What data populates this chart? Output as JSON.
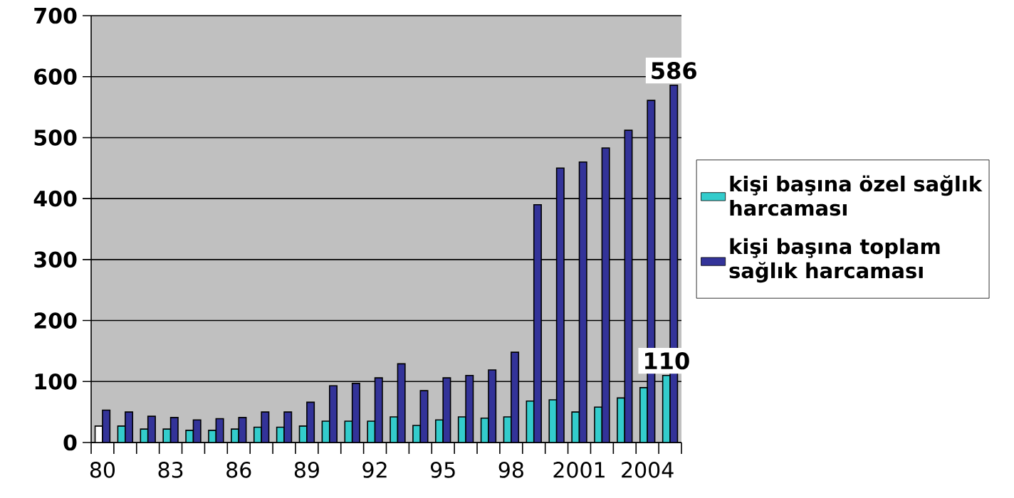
{
  "chart_data": {
    "type": "bar",
    "categories": [
      "80",
      null,
      null,
      "83",
      null,
      null,
      "86",
      null,
      null,
      "89",
      null,
      null,
      "92",
      null,
      null,
      "95",
      null,
      null,
      "98",
      null,
      null,
      "2001",
      null,
      null,
      "2004",
      null
    ],
    "series": [
      {
        "name": "kişi başına özel sağlık harcaması",
        "color": "#33cccc",
        "colors": [
          "#ffffff",
          "#33cccc",
          "#33cccc",
          "#33cccc",
          "#33cccc",
          "#33cccc",
          "#33cccc",
          "#33cccc",
          "#33cccc",
          "#33cccc",
          "#33cccc",
          "#33cccc",
          "#33cccc",
          "#33cccc",
          "#33cccc",
          "#33cccc",
          "#33cccc",
          "#33cccc",
          "#33cccc",
          "#33cccc",
          "#33cccc",
          "#33cccc",
          "#33cccc",
          "#33cccc",
          "#33cccc",
          "#33cccc"
        ],
        "values": [
          27,
          27,
          22,
          22,
          20,
          20,
          22,
          25,
          25,
          27,
          35,
          35,
          35,
          42,
          28,
          37,
          42,
          40,
          42,
          68,
          70,
          50,
          58,
          73,
          90,
          110
        ],
        "value_labels": [
          null,
          null,
          null,
          null,
          null,
          null,
          null,
          null,
          null,
          null,
          null,
          null,
          null,
          null,
          null,
          null,
          null,
          null,
          null,
          null,
          null,
          null,
          null,
          null,
          null,
          "110"
        ]
      },
      {
        "name": "kişi başına toplam sağlık harcaması",
        "color": "#333399",
        "values": [
          53,
          50,
          43,
          41,
          37,
          39,
          41,
          50,
          50,
          66,
          93,
          97,
          106,
          129,
          85,
          106,
          110,
          119,
          148,
          390,
          450,
          460,
          483,
          512,
          561,
          586
        ],
        "value_labels": [
          null,
          null,
          null,
          null,
          null,
          null,
          null,
          null,
          null,
          null,
          null,
          null,
          null,
          null,
          null,
          null,
          null,
          null,
          null,
          null,
          null,
          null,
          null,
          null,
          null,
          "586"
        ]
      }
    ],
    "ylim": [
      0,
      700
    ],
    "yticks": [
      0,
      100,
      200,
      300,
      400,
      500,
      600,
      700
    ],
    "grid": "y",
    "legend": "right"
  }
}
